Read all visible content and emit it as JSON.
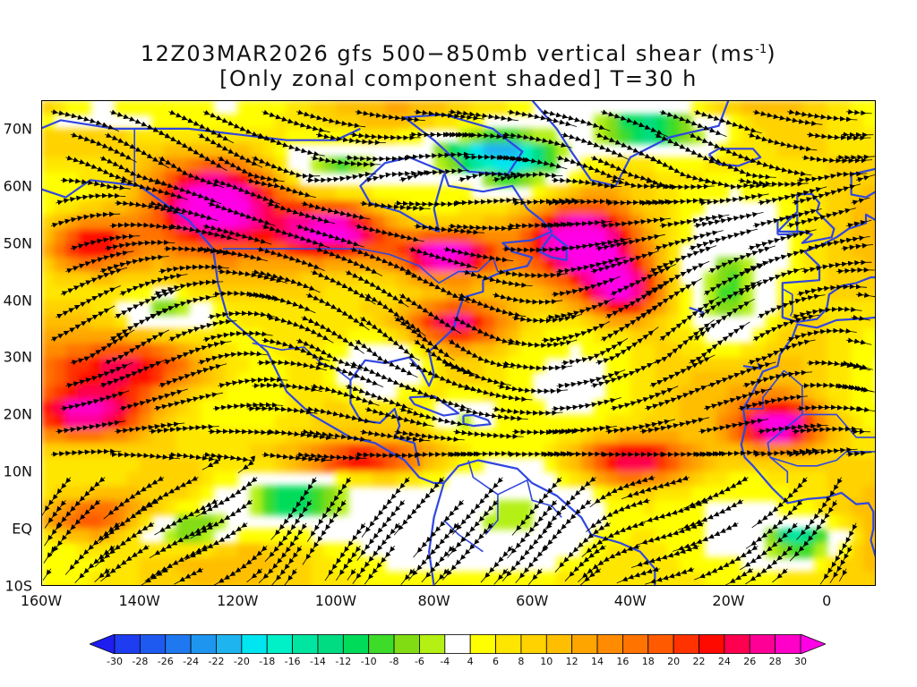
{
  "title": {
    "line1_prefix": "12Z03MAR2026 gfs 500−850mb vertical shear (ms",
    "line1_sup": "-1",
    "line1_suffix": ")",
    "line2": "[Only zonal component shaded] T=30 h"
  },
  "map": {
    "lon_range": [
      -160,
      10
    ],
    "lat_range": [
      -10,
      75
    ],
    "lat_labels": [
      {
        "lat": 70,
        "text": "70N"
      },
      {
        "lat": 60,
        "text": "60N"
      },
      {
        "lat": 50,
        "text": "50N"
      },
      {
        "lat": 40,
        "text": "40N"
      },
      {
        "lat": 30,
        "text": "30N"
      },
      {
        "lat": 20,
        "text": "20N"
      },
      {
        "lat": 10,
        "text": "10N"
      },
      {
        "lat": 0,
        "text": "EQ"
      },
      {
        "lat": -10,
        "text": "10S"
      }
    ],
    "lon_labels": [
      {
        "lon": -160,
        "text": "160W"
      },
      {
        "lon": -140,
        "text": "140W"
      },
      {
        "lon": -120,
        "text": "120W"
      },
      {
        "lon": -100,
        "text": "100W"
      },
      {
        "lon": -80,
        "text": "80W"
      },
      {
        "lon": -60,
        "text": "60W"
      },
      {
        "lon": -40,
        "text": "40W"
      },
      {
        "lon": -20,
        "text": "20W"
      },
      {
        "lon": 0,
        "text": "0"
      }
    ],
    "coastline_color": "#3046e0",
    "streamline_color": "#000000"
  },
  "colorbar": {
    "labels": [
      "-30",
      "-28",
      "-26",
      "-24",
      "-22",
      "-20",
      "-18",
      "-16",
      "-14",
      "-12",
      "-10",
      "-8",
      "-6",
      "-4",
      "4",
      "6",
      "8",
      "10",
      "12",
      "14",
      "16",
      "18",
      "20",
      "22",
      "24",
      "26",
      "28",
      "30"
    ],
    "colors": [
      "#1e1ef0",
      "#1e3cf0",
      "#1e5af0",
      "#1e78f0",
      "#1e96f0",
      "#1eb4f0",
      "#00e6f0",
      "#00f0c8",
      "#00e6a0",
      "#00dc82",
      "#00dc5a",
      "#3cdc28",
      "#82dc14",
      "#b4f014",
      "#ffffff",
      "#ffff00",
      "#ffe600",
      "#ffd200",
      "#ffbe00",
      "#ffa500",
      "#ff8c00",
      "#ff7300",
      "#ff5a00",
      "#ff3200",
      "#ff0a00",
      "#ff0050",
      "#ff0096",
      "#ff00c8",
      "#ff00e6"
    ]
  }
}
